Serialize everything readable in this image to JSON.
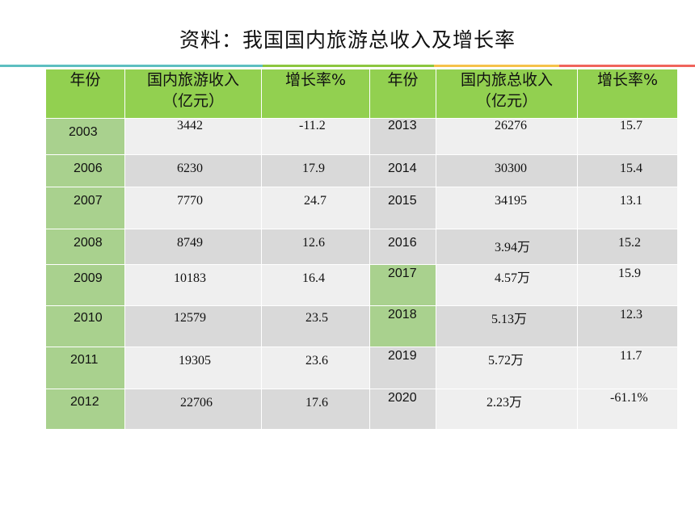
{
  "title": "资料：我国国内旅游总收入及增长率",
  "headers": [
    "年份",
    "国内旅游收入\n（亿元）",
    "增长率%",
    "年份",
    "国内旅总收入\n（亿元）",
    "增长率%"
  ],
  "rows": [
    {
      "y1": "2003",
      "r1": "3442",
      "g1": "-11.2",
      "y2": "2013",
      "r2": "26276",
      "g2": "15.7"
    },
    {
      "y1": "2006",
      "r1": "6230",
      "g1": "17.9",
      "y2": "2014",
      "r2": "30300",
      "g2": "15.4"
    },
    {
      "y1": "2007",
      "r1": "7770",
      "g1": "24.7",
      "y2": "2015",
      "r2": "34195",
      "g2": "13.1"
    },
    {
      "y1": "2008",
      "r1": "8749",
      "g1": "12.6",
      "y2": "2016",
      "r2": "3.94万",
      "g2": "15.2"
    },
    {
      "y1": "2009",
      "r1": "10183",
      "g1": "16.4",
      "y2": "2017",
      "r2": "4.57万",
      "g2": "15.9"
    },
    {
      "y1": "2010",
      "r1": "12579",
      "g1": "23.5",
      "y2": "2018",
      "r2": "5.13万",
      "g2": "12.3"
    },
    {
      "y1": "2011",
      "r1": "19305",
      "g1": "23.6",
      "y2": "2019",
      "r2": "5.72万",
      "g2": "11.7"
    },
    {
      "y1": "2012",
      "r1": "22706",
      "g1": "17.6",
      "y2": "2020",
      "r2": "2.23万",
      "g2": "-61.1%"
    }
  ],
  "colors": {
    "header_bg": "#92d050",
    "year_bg": "#a9d18e",
    "row_dark": "#d9d9d9",
    "row_light": "#efefef",
    "negative": "#c0282f"
  }
}
